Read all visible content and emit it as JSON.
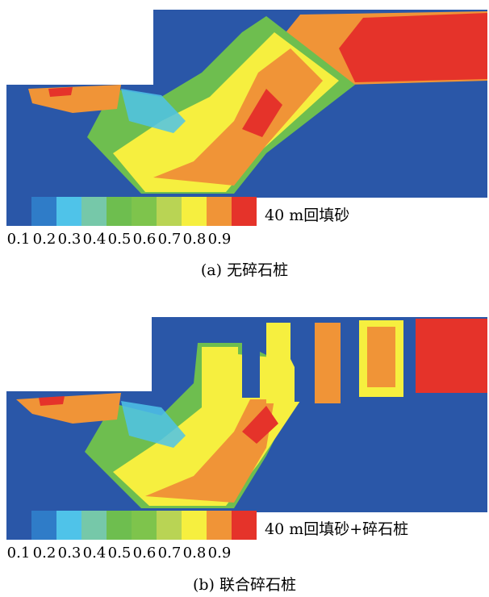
{
  "colorscale": {
    "colors": [
      "#2a57a8",
      "#2f7cc8",
      "#4fc3e9",
      "#76c8a9",
      "#6ebe4f",
      "#7ec44c",
      "#b9d454",
      "#f6ef3f",
      "#f09437",
      "#e5332a"
    ],
    "ticks": [
      "0.1",
      "0.2",
      "0.3",
      "0.4",
      "0.5",
      "0.6",
      "0.7",
      "0.8",
      "0.9"
    ]
  },
  "panels": [
    {
      "legend_label": "40 m回填砂",
      "caption": "(a) 无碎石桩"
    },
    {
      "legend_label": "40 m回填砂+碎石桩",
      "caption": "(b) 联合碎石桩"
    }
  ],
  "chart_data": [
    {
      "type": "heatmap",
      "title": "(a) 无碎石桩",
      "legend_label": "40 m回填砂",
      "colorbar_ticks": [
        0.1,
        0.2,
        0.3,
        0.4,
        0.5,
        0.6,
        0.7,
        0.8,
        0.9
      ],
      "colorbar_range": [
        0.05,
        0.95
      ],
      "notes": "contour field of a cross-section; high values (0.8-0.9) in the backfill on the right, intermediate band (0.5-0.8) along the sloped sand wedge, low (0.1) in surrounding soil"
    },
    {
      "type": "heatmap",
      "title": "(b) 联合碎石桩",
      "legend_label": "40 m回填砂+碎石桩",
      "colorbar_ticks": [
        0.1,
        0.2,
        0.3,
        0.4,
        0.5,
        0.6,
        0.7,
        0.8,
        0.9
      ],
      "colorbar_range": [
        0.05,
        0.95
      ],
      "notes": "same section with stone columns; the backfill field is broken into vertical strips of 0.6-0.9 separated by low-value (0.1) columns"
    }
  ]
}
